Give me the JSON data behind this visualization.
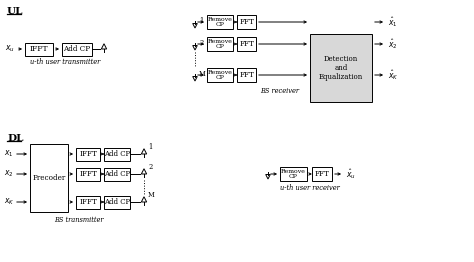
{
  "bg_color": "#ffffff",
  "box_edge": "#000000",
  "line_color": "#000000",
  "text_color": "#000000",
  "label_ul_tx": "u-th user transmitter",
  "label_bs_rx": "BS receiver",
  "label_bs_tx": "BS transmitter",
  "label_ul_rx": "u-th user receiver",
  "ul_lbl": "UL",
  "dl_lbl": "DL"
}
